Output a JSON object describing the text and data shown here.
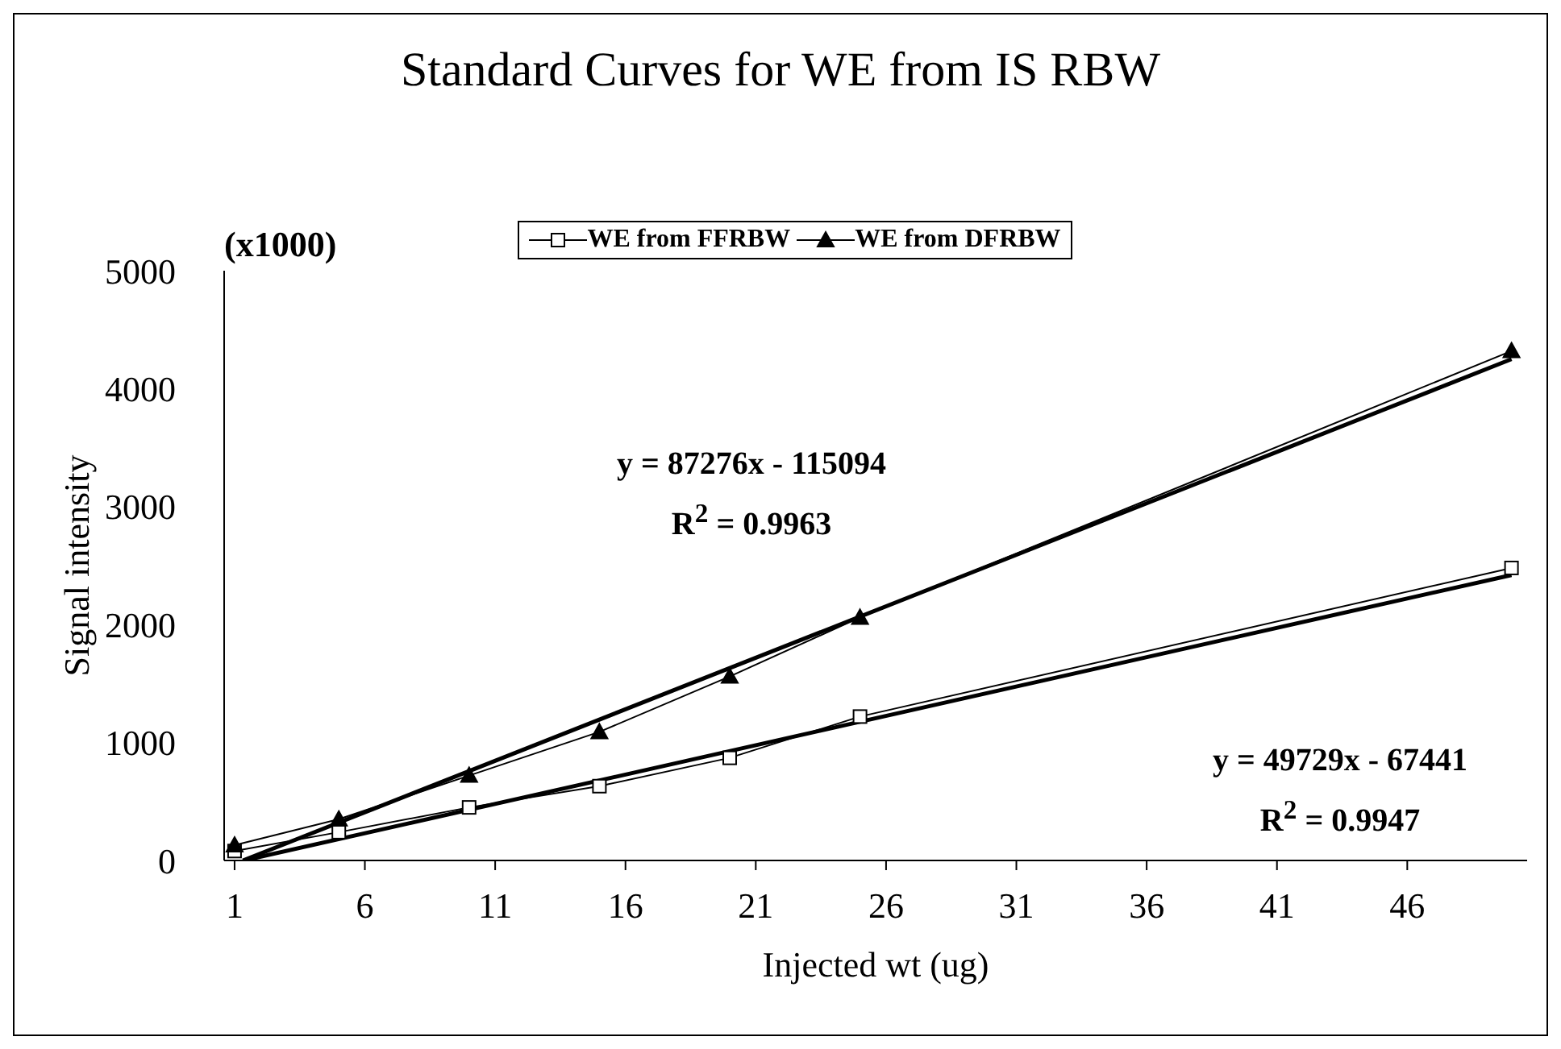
{
  "chart_data": {
    "type": "line",
    "title": "Standard Curves for WE from IS RBW",
    "xlabel": "Injected wt (ug)",
    "ylabel": "Signal intensity",
    "xlim": [
      0.6,
      50.6
    ],
    "xticks": [
      1,
      6,
      11,
      16,
      21,
      26,
      31,
      36,
      41,
      46
    ],
    "ylim": [
      0,
      5000
    ],
    "yticks": [
      0,
      1000,
      2000,
      3000,
      4000,
      5000
    ],
    "grid": false,
    "legend": "top",
    "series": [
      {
        "name": "WE from FFRBW",
        "color": "#000000",
        "marker": "square",
        "x": [
          1,
          5,
          10,
          15,
          20,
          25,
          50
        ],
        "values": [
          80,
          240,
          450,
          630,
          870,
          1220,
          2480
        ]
      },
      {
        "name": "WE from DFRBW",
        "color": "#000000",
        "marker": "triangle",
        "x": [
          1,
          5,
          10,
          15,
          20,
          25,
          50
        ],
        "values": [
          130,
          350,
          720,
          1090,
          1560,
          2060,
          4320
        ]
      },
      {
        "type": "line",
        "color": "#000000",
        "marker": "none",
        "x": [
          1.36,
          50
        ],
        "values": [
          0,
          2420
        ]
      },
      {
        "type": "line",
        "color": "#000000",
        "marker": "none",
        "x": [
          1.32,
          50
        ],
        "values": [
          0,
          4250
        ]
      }
    ],
    "annotations": [
      "(x1000)",
      "y = 87276x - 115094",
      "R$^{2}$ = 0.9963",
      "y = 49729x - 67441",
      "R$^{2}$ = 0.9947"
    ]
  }
}
